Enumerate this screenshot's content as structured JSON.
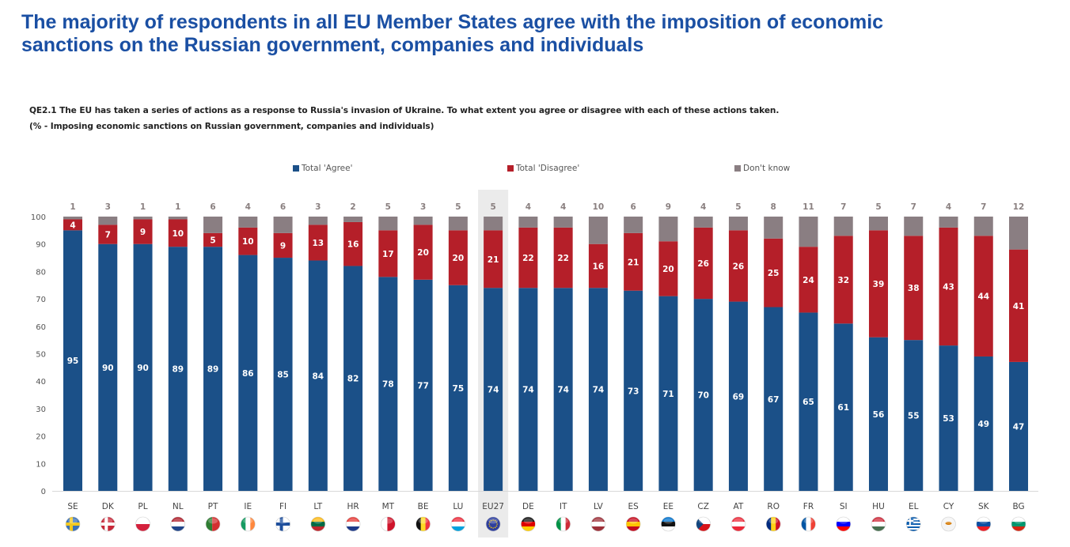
{
  "page": {
    "title_line1": "The majority of respondents in all EU Member States agree with the imposition of economic",
    "title_line2": "sanctions on the Russian government, companies and individuals",
    "question_line1": "QE2.1  The EU has taken a series of actions as a response to Russia's invasion of Ukraine. To what extent you agree or disagree with each of these actions taken.",
    "question_line2": "(% - Imposing economic sanctions on Russian government, companies and individuals)"
  },
  "colors": {
    "agree": "#1b5088",
    "disagree": "#b51f29",
    "dont_know": "#8a7e82",
    "highlight": "#ebebeb",
    "title": "#1a4fa3"
  },
  "chart_data": {
    "type": "bar",
    "stacked": true,
    "title": "",
    "xlabel": "",
    "ylabel": "",
    "ylim": [
      0,
      100
    ],
    "yticks": [
      0,
      10,
      20,
      30,
      40,
      50,
      60,
      70,
      80,
      90,
      100
    ],
    "grid": false,
    "legend_position": "top-center",
    "highlighted_category": "EU27",
    "categories": [
      "SE",
      "DK",
      "PL",
      "NL",
      "PT",
      "IE",
      "FI",
      "LT",
      "HR",
      "MT",
      "BE",
      "LU",
      "EU27",
      "DE",
      "IT",
      "LV",
      "ES",
      "EE",
      "CZ",
      "AT",
      "RO",
      "FR",
      "SI",
      "HU",
      "EL",
      "CY",
      "SK",
      "BG"
    ],
    "series": [
      {
        "name": "Total 'Agree'",
        "key": "agree",
        "values": [
          95,
          90,
          90,
          89,
          89,
          86,
          85,
          84,
          82,
          78,
          77,
          75,
          74,
          74,
          74,
          74,
          73,
          71,
          70,
          69,
          67,
          65,
          61,
          56,
          55,
          53,
          49,
          47
        ]
      },
      {
        "name": "Total 'Disagree'",
        "key": "disagree",
        "values": [
          4,
          7,
          9,
          10,
          5,
          10,
          9,
          13,
          16,
          17,
          20,
          20,
          21,
          22,
          22,
          16,
          21,
          20,
          26,
          26,
          25,
          24,
          32,
          39,
          38,
          43,
          44,
          41
        ]
      },
      {
        "name": "Don't know",
        "key": "dont_know",
        "values": [
          1,
          3,
          1,
          1,
          6,
          4,
          6,
          3,
          2,
          5,
          3,
          5,
          5,
          4,
          4,
          10,
          6,
          9,
          4,
          5,
          8,
          11,
          7,
          5,
          7,
          4,
          7,
          12
        ]
      }
    ],
    "flags": {
      "SE": [
        "#3b72b8",
        "#f2c81e",
        "cross"
      ],
      "DK": [
        "#c8283a",
        "#ffffff",
        "cross"
      ],
      "PL": [
        "#ffffff",
        "#d4213d",
        "h2"
      ],
      "NL": [
        "#ae1c28",
        "#ffffff",
        "#21468b",
        "h3"
      ],
      "PT": [
        "#2e7d32",
        "#d32f2f",
        "v2"
      ],
      "IE": [
        "#169b62",
        "#ffffff",
        "#ff883e",
        "v3"
      ],
      "FI": [
        "#ffffff",
        "#1e4f9c",
        "cross"
      ],
      "LT": [
        "#fdb913",
        "#006a44",
        "#c1272d",
        "h3"
      ],
      "HR": [
        "#e53935",
        "#ffffff",
        "#1e3a8a",
        "h3"
      ],
      "MT": [
        "#ffffff",
        "#cf142b",
        "v2"
      ],
      "BE": [
        "#111111",
        "#fdda24",
        "#ef3340",
        "v3"
      ],
      "LU": [
        "#ed2939",
        "#ffffff",
        "#00a1de",
        "h3"
      ],
      "EU27": [
        "#2e3f9e",
        "#ffcc00",
        "eu"
      ],
      "DE": [
        "#111111",
        "#dd0000",
        "#ffce00",
        "h3"
      ],
      "IT": [
        "#009246",
        "#ffffff",
        "#ce2b37",
        "v3"
      ],
      "LV": [
        "#9e3039",
        "#ffffff",
        "#9e3039",
        "h3"
      ],
      "ES": [
        "#c60b1e",
        "#ffc400",
        "#c60b1e",
        "h3"
      ],
      "EE": [
        "#0072ce",
        "#111111",
        "#ffffff",
        "h3"
      ],
      "CZ": [
        "#ffffff",
        "#d7141a",
        "#11457e",
        "cz"
      ],
      "AT": [
        "#ed2939",
        "#ffffff",
        "#ed2939",
        "h3"
      ],
      "RO": [
        "#002b7f",
        "#fcd116",
        "#ce1126",
        "v3"
      ],
      "FR": [
        "#0055a4",
        "#ffffff",
        "#ef4135",
        "v3"
      ],
      "SI": [
        "#ffffff",
        "#0000ff",
        "#ff0000",
        "h3"
      ],
      "HU": [
        "#ce2939",
        "#ffffff",
        "#477050",
        "h3"
      ],
      "EL": [
        "#0d5eaf",
        "#ffffff",
        "gr"
      ],
      "CY": [
        "#f4f4f4",
        "#d57800",
        "cy"
      ],
      "SK": [
        "#ffffff",
        "#0b4ea2",
        "#ee1c25",
        "h3"
      ],
      "BG": [
        "#ffffff",
        "#00966e",
        "#d62612",
        "h3"
      ]
    }
  }
}
